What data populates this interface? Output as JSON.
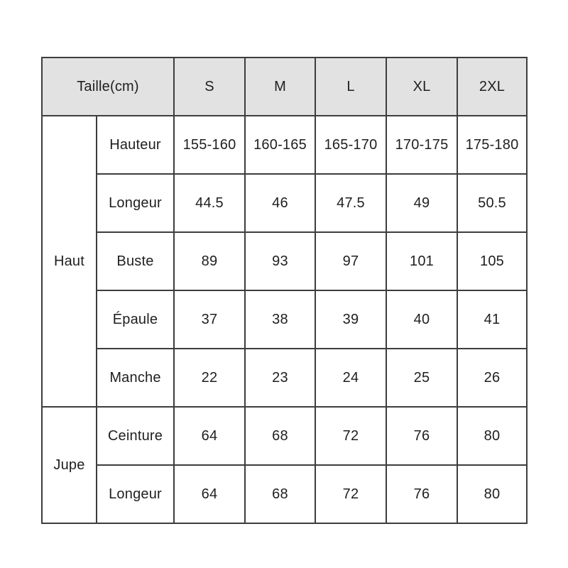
{
  "chart_data": {
    "type": "table",
    "title": "Taille(cm)",
    "columns": [
      "Taille(cm)",
      "S",
      "M",
      "L",
      "XL",
      "2XL"
    ],
    "rows": [
      {
        "section": "Haut",
        "measure": "Hauteur",
        "values": [
          "155-160",
          "160-165",
          "165-170",
          "170-175",
          "175-180"
        ]
      },
      {
        "section": "Haut",
        "measure": "Longeur",
        "values": [
          "44.5",
          "46",
          "47.5",
          "49",
          "50.5"
        ]
      },
      {
        "section": "Haut",
        "measure": "Buste",
        "values": [
          "89",
          "93",
          "97",
          "101",
          "105"
        ]
      },
      {
        "section": "Haut",
        "measure": "Épaule",
        "values": [
          "37",
          "38",
          "39",
          "40",
          "41"
        ]
      },
      {
        "section": "Haut",
        "measure": "Manche",
        "values": [
          "22",
          "23",
          "24",
          "25",
          "26"
        ]
      },
      {
        "section": "Jupe",
        "measure": "Ceinture",
        "values": [
          "64",
          "68",
          "72",
          "76",
          "80"
        ]
      },
      {
        "section": "Jupe",
        "measure": "Longeur",
        "values": [
          "64",
          "68",
          "72",
          "76",
          "80"
        ]
      }
    ]
  },
  "table": {
    "header": {
      "label": "Taille(cm)",
      "sizes": [
        "S",
        "M",
        "L",
        "XL",
        "2XL"
      ]
    },
    "sections": [
      {
        "name": "Haut",
        "rows": [
          {
            "label": "Hauteur",
            "values": [
              "155-160",
              "160-165",
              "165-170",
              "170-175",
              "175-180"
            ]
          },
          {
            "label": "Longeur",
            "values": [
              "44.5",
              "46",
              "47.5",
              "49",
              "50.5"
            ]
          },
          {
            "label": "Buste",
            "values": [
              "89",
              "93",
              "97",
              "101",
              "105"
            ]
          },
          {
            "label": "Épaule",
            "values": [
              "37",
              "38",
              "39",
              "40",
              "41"
            ]
          },
          {
            "label": "Manche",
            "values": [
              "22",
              "23",
              "24",
              "25",
              "26"
            ]
          }
        ]
      },
      {
        "name": "Jupe",
        "rows": [
          {
            "label": "Ceinture",
            "values": [
              "64",
              "68",
              "72",
              "76",
              "80"
            ]
          },
          {
            "label": "Longeur",
            "values": [
              "64",
              "68",
              "72",
              "76",
              "80"
            ]
          }
        ]
      }
    ]
  },
  "colors": {
    "header_bg": "#e2e2e2",
    "border": "#3d3d3d",
    "text": "#1f1f1f",
    "background": "#ffffff"
  }
}
